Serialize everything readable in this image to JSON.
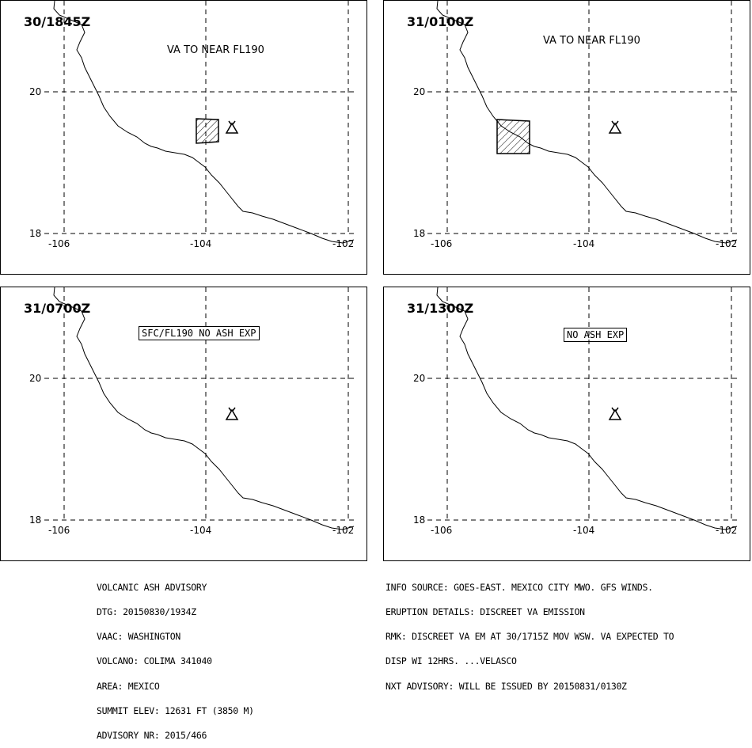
{
  "panels": [
    {
      "time": "30/1845Z",
      "label": "VA TO NEAR FL190",
      "label_boxed": false,
      "ash_area": "small"
    },
    {
      "time": "31/0100Z",
      "label": "VA TO NEAR FL190",
      "label_boxed": false,
      "ash_area": "large"
    },
    {
      "time": "31/0700Z",
      "label": "SFC/FL190 NO ASH EXP",
      "label_boxed": true,
      "ash_area": "none"
    },
    {
      "time": "31/1300Z",
      "label": "NO ASH EXP",
      "label_boxed": true,
      "ash_area": "none"
    }
  ],
  "axes": {
    "lat_labels": [
      "20",
      "18"
    ],
    "lon_labels": [
      "-106",
      "-104",
      "-102"
    ]
  },
  "icons": {
    "volcano": "volcano-icon",
    "ash_polygon": "hatched-ash-polygon"
  },
  "advisory_left": [
    "VOLCANIC ASH ADVISORY",
    "DTG: 20150830/1934Z",
    "VAAC: WASHINGTON",
    "VOLCANO: COLIMA 341040",
    "AREA: MEXICO",
    "SUMMIT ELEV: 12631 FT (3850 M)",
    "ADVISORY NR: 2015/466"
  ],
  "advisory_right": [
    "INFO SOURCE: GOES-EAST. MEXICO CITY MWO. GFS WINDS.",
    "ERUPTION DETAILS: DISCREET VA EMISSION",
    "RMK: DISCREET VA EM AT 30/1715Z MOV WSW. VA EXPECTED TO",
    "DISP WI 12HRS. ...VELASCO",
    "NXT ADVISORY: WILL BE ISSUED BY 20150831/0130Z"
  ]
}
